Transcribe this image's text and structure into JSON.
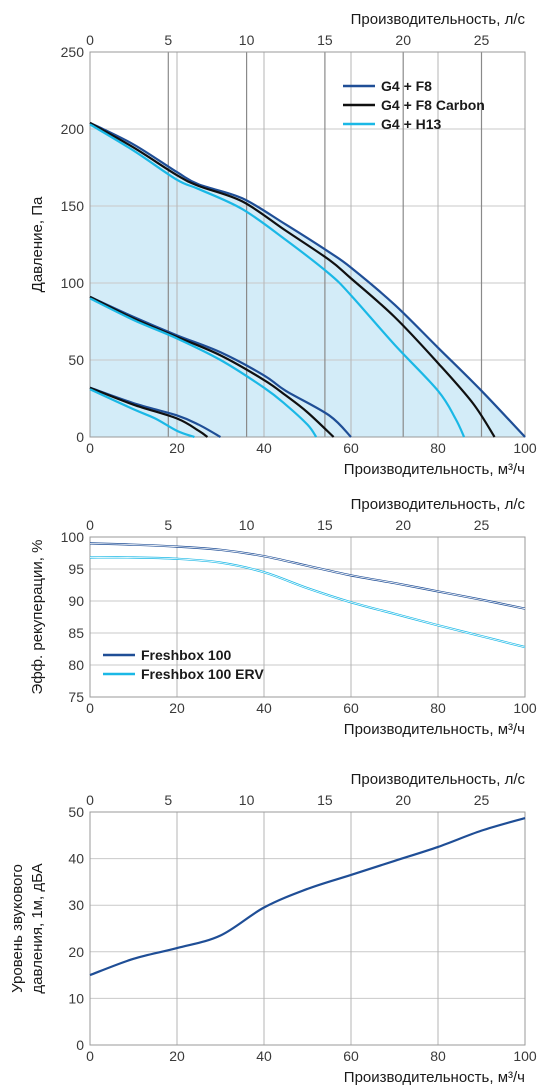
{
  "colors": {
    "navy": "#1f4e96",
    "black": "#101010",
    "cyan": "#1ab8e6",
    "fill": "#d3ecf8"
  },
  "chart_data": [
    {
      "type": "line",
      "top_axis_label": "Производительность, л/с",
      "top_ticks": [
        "0",
        "5",
        "10",
        "15",
        "20",
        "25"
      ],
      "top_values": [
        0,
        5,
        10,
        15,
        20,
        25
      ],
      "ylabel": "Давление, Па",
      "xlabel": "Производительность, м³/ч",
      "xlim": [
        0,
        100
      ],
      "ylim": [
        0,
        250
      ],
      "x_ticks": [
        "0",
        "20",
        "40",
        "60",
        "80",
        "100"
      ],
      "x_tick_values": [
        0,
        20,
        40,
        60,
        80,
        100
      ],
      "y_ticks": [
        "0",
        "50",
        "100",
        "150",
        "200",
        "250"
      ],
      "y_tick_values": [
        0,
        50,
        100,
        150,
        200,
        250
      ],
      "legend": [
        {
          "name": "G4 + F8",
          "color": "navy"
        },
        {
          "name": "G4 + F8 Carbon",
          "color": "black"
        },
        {
          "name": "G4 + H13",
          "color": "cyan"
        }
      ],
      "series": [
        {
          "name": "G4 + F8",
          "color": "navy",
          "curves": [
            {
              "x": [
                0,
                10,
                20,
                25,
                35,
                45,
                55,
                60,
                70,
                80,
                90,
                100
              ],
              "y": [
                204,
                190,
                172,
                164,
                155,
                138,
                120,
                110,
                86,
                58,
                30,
                0
              ]
            },
            {
              "x": [
                0,
                10,
                20,
                30,
                40,
                45,
                55,
                60
              ],
              "y": [
                91,
                78,
                66,
                55,
                40,
                30,
                14,
                0
              ]
            },
            {
              "x": [
                0,
                10,
                20,
                25,
                30
              ],
              "y": [
                32,
                22,
                14,
                8,
                0
              ]
            }
          ]
        },
        {
          "name": "G4 + F8 Carbon",
          "color": "black",
          "curves": [
            {
              "x": [
                0,
                10,
                20,
                25,
                35,
                45,
                55,
                60,
                70,
                80,
                88,
                93
              ],
              "y": [
                204,
                188,
                170,
                163,
                153,
                134,
                115,
                103,
                78,
                48,
                22,
                0
              ]
            },
            {
              "x": [
                0,
                10,
                20,
                30,
                40,
                45,
                50,
                56
              ],
              "y": [
                91,
                77,
                65,
                53,
                37,
                27,
                16,
                0
              ]
            },
            {
              "x": [
                0,
                10,
                20,
                25,
                27
              ],
              "y": [
                32,
                21,
                12,
                4,
                0
              ]
            }
          ]
        },
        {
          "name": "G4 + H13",
          "color": "cyan",
          "curves": [
            {
              "x": [
                0,
                10,
                20,
                25,
                35,
                45,
                55,
                60,
                70,
                80,
                84,
                86
              ],
              "y": [
                203,
                186,
                167,
                161,
                148,
                128,
                106,
                92,
                60,
                30,
                12,
                0
              ]
            },
            {
              "x": [
                0,
                10,
                20,
                30,
                40,
                45,
                50,
                52
              ],
              "y": [
                90,
                76,
                64,
                50,
                32,
                21,
                8,
                0
              ]
            },
            {
              "x": [
                0,
                10,
                15,
                20,
                24
              ],
              "y": [
                31,
                18,
                12,
                4,
                0
              ]
            }
          ]
        }
      ]
    },
    {
      "type": "line",
      "top_axis_label": "Производительность, л/с",
      "top_ticks": [
        "0",
        "5",
        "10",
        "15",
        "20",
        "25"
      ],
      "top_values": [
        0,
        5,
        10,
        15,
        20,
        25
      ],
      "ylabel": "Эфф. рекуперации, %",
      "xlabel": "Производительность, м³/ч",
      "xlim": [
        0,
        100
      ],
      "ylim": [
        75,
        100
      ],
      "x_ticks": [
        "0",
        "20",
        "40",
        "60",
        "80",
        "100"
      ],
      "x_tick_values": [
        0,
        20,
        40,
        60,
        80,
        100
      ],
      "y_ticks": [
        "75",
        "80",
        "85",
        "90",
        "95",
        "100"
      ],
      "y_tick_values": [
        75,
        80,
        85,
        90,
        95,
        100
      ],
      "legend": [
        {
          "name": "Freshbox 100",
          "color": "navy"
        },
        {
          "name": "Freshbox 100 ERV",
          "color": "cyan"
        }
      ],
      "series": [
        {
          "name": "Freshbox 100",
          "color": "navy",
          "curves": [
            {
              "x": [
                0,
                10,
                20,
                30,
                40,
                50,
                60,
                70,
                80,
                90,
                100
              ],
              "y": [
                99.0,
                98.8,
                98.5,
                98.0,
                97.0,
                95.5,
                94.0,
                92.8,
                91.5,
                90.2,
                88.8
              ]
            }
          ]
        },
        {
          "name": "Freshbox 100 ERV",
          "color": "cyan",
          "curves": [
            {
              "x": [
                0,
                10,
                20,
                30,
                40,
                50,
                60,
                70,
                80,
                90,
                100
              ],
              "y": [
                96.8,
                96.8,
                96.6,
                96.0,
                94.5,
                92.0,
                89.8,
                88.0,
                86.2,
                84.5,
                82.8
              ]
            }
          ]
        }
      ]
    },
    {
      "type": "line",
      "top_axis_label": "Производительность, л/с",
      "top_ticks": [
        "0",
        "5",
        "10",
        "15",
        "20",
        "25"
      ],
      "top_values": [
        0,
        5,
        10,
        15,
        20,
        25
      ],
      "ylabel_lines": [
        "Уровень звукового",
        "давления, 1м, дБА"
      ],
      "xlabel": "Производительность, м³/ч",
      "xlim": [
        0,
        100
      ],
      "ylim": [
        0,
        50
      ],
      "x_ticks": [
        "0",
        "20",
        "40",
        "60",
        "80",
        "100"
      ],
      "x_tick_values": [
        0,
        20,
        40,
        60,
        80,
        100
      ],
      "y_ticks": [
        "0",
        "10",
        "20",
        "30",
        "40",
        "50"
      ],
      "y_tick_values": [
        0,
        10,
        20,
        30,
        40,
        50
      ],
      "series": [
        {
          "color": "navy",
          "curves": [
            {
              "x": [
                0,
                10,
                20,
                30,
                40,
                50,
                60,
                70,
                80,
                90,
                100
              ],
              "y": [
                15,
                18.5,
                20.8,
                23.5,
                29.5,
                33.5,
                36.5,
                39.5,
                42.5,
                46,
                48.7
              ]
            }
          ]
        }
      ]
    }
  ]
}
